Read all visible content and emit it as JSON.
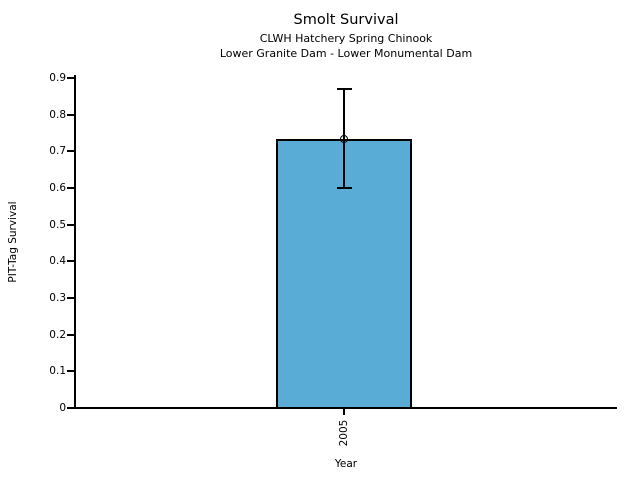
{
  "chart_data": {
    "type": "bar",
    "title": "Smolt Survival",
    "subtitle1": "CLWH Hatchery Spring Chinook",
    "subtitle2": "Lower Granite Dam - Lower Monumental Dam",
    "xlabel": "Year",
    "ylabel": "PIT-Tag Survival",
    "categories": [
      "2005"
    ],
    "values": [
      0.735
    ],
    "error_low": [
      0.6
    ],
    "error_high": [
      0.87
    ],
    "ylim": [
      0,
      0.9
    ],
    "yticks": [
      0,
      0.1,
      0.2,
      0.3,
      0.4,
      0.5,
      0.6,
      0.7,
      0.8,
      0.9
    ],
    "ytick_labels": [
      "0",
      "0.1",
      "0.2",
      "0.3",
      "0.4",
      "0.5",
      "0.6",
      "0.7",
      "0.8",
      "0.9"
    ],
    "grid": false,
    "legend": null,
    "marker": "open-circle",
    "bar_color": "#58ACD6",
    "bar_edge_color": "#000000",
    "error_color": "#000000",
    "background_color": "#FFFFFF"
  }
}
